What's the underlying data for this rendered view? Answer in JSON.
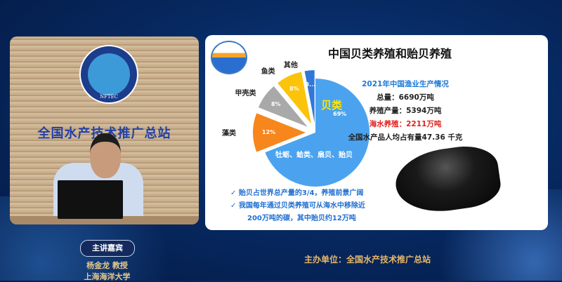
{
  "video": {
    "logo_text": "NFTEC",
    "wall_sign": "全国水产技术推广总站"
  },
  "slide": {
    "title": "中国贝类养殖和贻贝养殖",
    "stats": {
      "heading": "2021年中国渔业生产情况",
      "total": "总量：6690万吨",
      "aquaculture": "养殖产量：5394万吨",
      "mariculture": "海水养殖：2211万吨",
      "per_capita": "全国水产品人均占有量47.36 千克"
    },
    "bullets": [
      "✓  贻贝占世界总产量的3/4，养殖前景广阔",
      "✓  我国每年通过贝类养殖可从海水中移除近",
      "200万吨的碳，其中贻贝约12万吨"
    ],
    "shellfish_note": "牡蛎、蛤类、扇贝、贻贝"
  },
  "chart_data": {
    "type": "pie",
    "title": "",
    "slices": [
      {
        "label": "贝类",
        "value": 69,
        "pct_label": "69%",
        "color": "#4ba3ef"
      },
      {
        "label": "藻类",
        "value": 12,
        "pct_label": "12%",
        "color": "#f7861c"
      },
      {
        "label": "甲壳类",
        "value": 8,
        "pct_label": "8%",
        "color": "#a9a9a9"
      },
      {
        "label": "鱼类",
        "value": 8,
        "pct_label": "8%",
        "color": "#fbc30a"
      },
      {
        "label": "其他",
        "value": 3,
        "pct_label": "3...",
        "color": "#2f78d8"
      }
    ]
  },
  "footer": {
    "host_badge": "主讲嘉宾",
    "host_name": "杨金龙  教授",
    "host_affiliation": "上海海洋大学",
    "organizer": "主办单位：全国水产技术推广总站"
  }
}
